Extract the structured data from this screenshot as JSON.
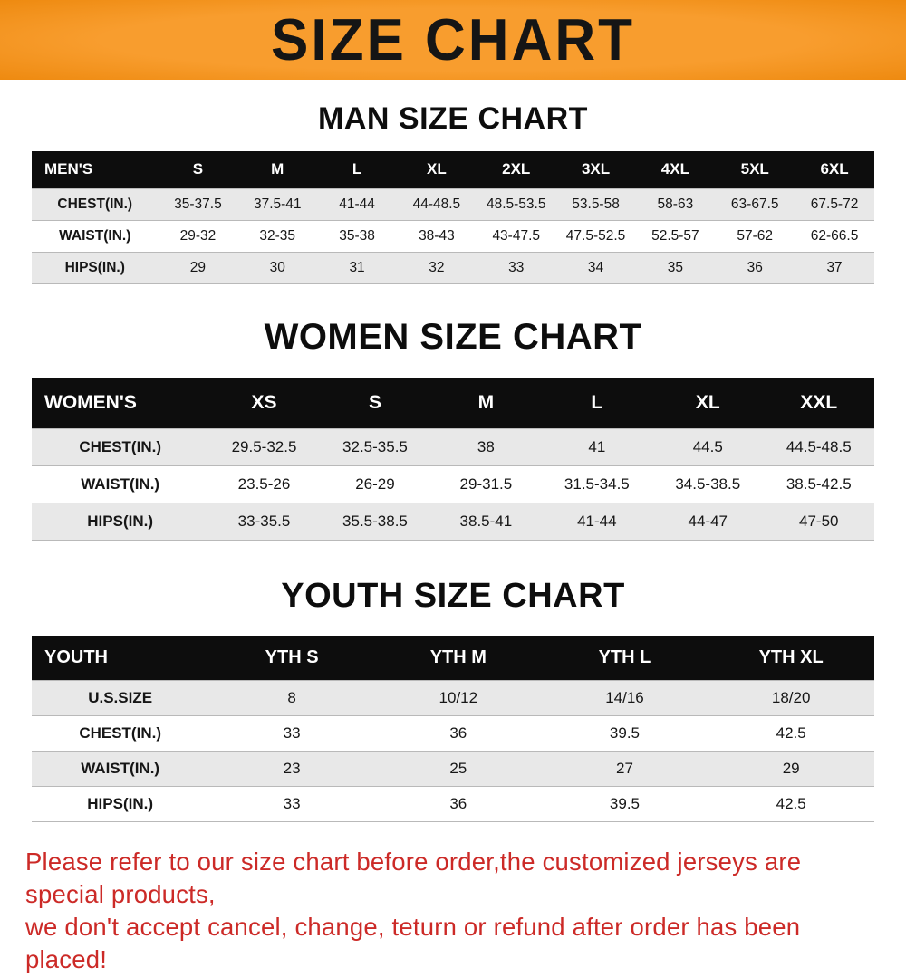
{
  "banner": {
    "title": "SIZE CHART"
  },
  "colors": {
    "banner_bg": "#f7941d",
    "header_row_bg": "#0d0d0d",
    "stripe_bg": "#e8e8e8",
    "note_text": "#cc2a27"
  },
  "sections": [
    {
      "heading": "MAN SIZE CHART",
      "table": {
        "group": "MEN'S",
        "columns": [
          "S",
          "M",
          "L",
          "XL",
          "2XL",
          "3XL",
          "4XL",
          "5XL",
          "6XL"
        ],
        "rows": [
          {
            "label": "CHEST(IN.)",
            "values": [
              "35-37.5",
              "37.5-41",
              "41-44",
              "44-48.5",
              "48.5-53.5",
              "53.5-58",
              "58-63",
              "63-67.5",
              "67.5-72"
            ]
          },
          {
            "label": "WAIST(IN.)",
            "values": [
              "29-32",
              "32-35",
              "35-38",
              "38-43",
              "43-47.5",
              "47.5-52.5",
              "52.5-57",
              "57-62",
              "62-66.5"
            ]
          },
          {
            "label": "HIPS(IN.)",
            "values": [
              "29",
              "30",
              "31",
              "32",
              "33",
              "34",
              "35",
              "36",
              "37"
            ]
          }
        ]
      }
    },
    {
      "heading": "WOMEN SIZE CHART",
      "table": {
        "group": "WOMEN'S",
        "columns": [
          "XS",
          "S",
          "M",
          "L",
          "XL",
          "XXL"
        ],
        "rows": [
          {
            "label": "CHEST(IN.)",
            "values": [
              "29.5-32.5",
              "32.5-35.5",
              "38",
              "41",
              "44.5",
              "44.5-48.5"
            ]
          },
          {
            "label": "WAIST(IN.)",
            "values": [
              "23.5-26",
              "26-29",
              "29-31.5",
              "31.5-34.5",
              "34.5-38.5",
              "38.5-42.5"
            ]
          },
          {
            "label": "HIPS(IN.)",
            "values": [
              "33-35.5",
              "35.5-38.5",
              "38.5-41",
              "41-44",
              "44-47",
              "47-50"
            ]
          }
        ]
      }
    },
    {
      "heading": "YOUTH SIZE CHART",
      "table": {
        "group": "YOUTH",
        "columns": [
          "YTH S",
          "YTH M",
          "YTH L",
          "YTH XL"
        ],
        "rows": [
          {
            "label": "U.S.SIZE",
            "values": [
              "8",
              "10/12",
              "14/16",
              "18/20"
            ]
          },
          {
            "label": "CHEST(IN.)",
            "values": [
              "33",
              "36",
              "39.5",
              "42.5"
            ]
          },
          {
            "label": "WAIST(IN.)",
            "values": [
              "23",
              "25",
              "27",
              "29"
            ]
          },
          {
            "label": "HIPS(IN.)",
            "values": [
              "33",
              "36",
              "39.5",
              "42.5"
            ]
          }
        ]
      }
    }
  ],
  "footer": {
    "lines": [
      "Please refer to our size chart before order,the customized jerseys are special products,",
      "we don't accept cancel, change, teturn or refund after order has been placed!"
    ]
  }
}
